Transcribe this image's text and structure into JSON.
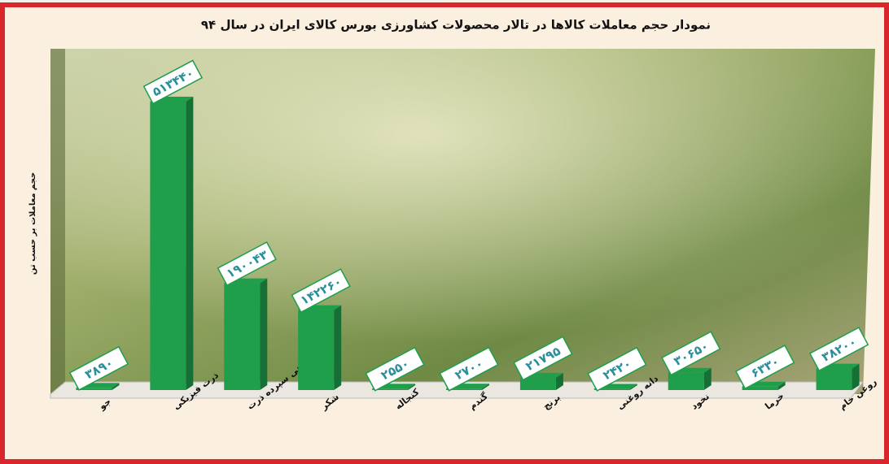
{
  "chart_data": {
    "type": "bar",
    "title": "نمودار حجم معاملات کالاها در تالار محصولات کشاورزی بورس کالای ایران در سال ۹۴",
    "y_label": "حجم معاملات بر حسب تن",
    "categories": [
      "جو",
      "ذرت فیزیکی",
      "گواهی سپرده ذرت",
      "شکر",
      "کنجاله",
      "گندم",
      "برنج",
      "دانه روغنی",
      "نخود",
      "خرما",
      "روغن خام"
    ],
    "values": [
      3890,
      513440,
      190043,
      142260,
      2550,
      2700,
      21795,
      2420,
      30650,
      6330,
      38200
    ],
    "value_labels": [
      "۳۸۹۰",
      "۵۱۳۴۴۰",
      "۱۹۰۰۴۳",
      "۱۴۲۲۶۰",
      "۲۵۵۰",
      "۲۷۰۰",
      "۲۱۷۹۵",
      "۲۴۲۰",
      "۳۰۶۵۰",
      "۶۳۳۰",
      "۳۸۲۰۰"
    ],
    "color": "#1f9e4c"
  }
}
